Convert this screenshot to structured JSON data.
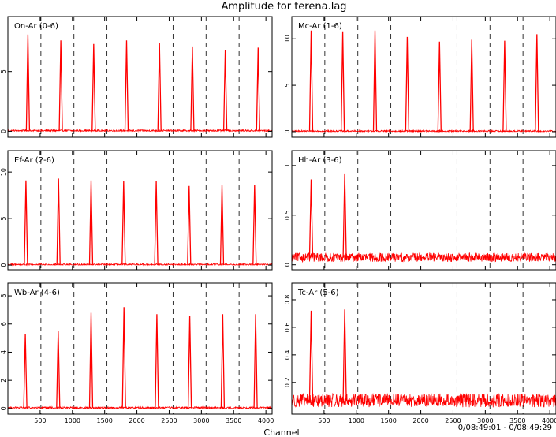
{
  "figure": {
    "title": "Amplitude for terena.lag",
    "xlabel": "Channel",
    "time_range": "0/08:49:01 - 0/08:49:29"
  },
  "chart_data": [
    {
      "type": "line",
      "title": "On-Ar (0-6)",
      "xlim": [
        0,
        4096
      ],
      "ylim": [
        -0.5,
        9.6
      ],
      "yticks": [
        0,
        5
      ],
      "xticks": [
        500,
        1000,
        1500,
        2000,
        2500,
        3000,
        3500,
        4000
      ],
      "dashed_x": [
        512,
        1024,
        1536,
        2048,
        2560,
        3072,
        3584
      ],
      "baseline": 0.05,
      "noise": 0.08,
      "peaks": [
        {
          "x": 310,
          "y": 8.1
        },
        {
          "x": 820,
          "y": 7.6
        },
        {
          "x": 1330,
          "y": 7.3
        },
        {
          "x": 1840,
          "y": 7.6
        },
        {
          "x": 2350,
          "y": 7.4
        },
        {
          "x": 2860,
          "y": 7.1
        },
        {
          "x": 3370,
          "y": 6.8
        },
        {
          "x": 3880,
          "y": 7.0
        }
      ],
      "series": [
        {
          "color": "#ff0000"
        }
      ]
    },
    {
      "type": "line",
      "title": "Mc-Ar (1-6)",
      "xlim": [
        0,
        4096
      ],
      "ylim": [
        -0.6,
        12.4
      ],
      "yticks": [
        0,
        5,
        10
      ],
      "xticks": [
        500,
        1000,
        1500,
        2000,
        2500,
        3000,
        3500,
        4000
      ],
      "dashed_x": [
        512,
        1024,
        1536,
        2048,
        2560,
        3072,
        3584
      ],
      "baseline": 0.05,
      "noise": 0.1,
      "peaks": [
        {
          "x": 300,
          "y": 10.9
        },
        {
          "x": 790,
          "y": 10.8
        },
        {
          "x": 1290,
          "y": 10.9
        },
        {
          "x": 1790,
          "y": 10.2
        },
        {
          "x": 2290,
          "y": 9.7
        },
        {
          "x": 2790,
          "y": 9.9
        },
        {
          "x": 3300,
          "y": 9.8
        },
        {
          "x": 3800,
          "y": 10.5
        }
      ],
      "series": [
        {
          "color": "#ff0000"
        }
      ]
    },
    {
      "type": "line",
      "title": "Ef-Ar (2-6)",
      "xlim": [
        0,
        4096
      ],
      "ylim": [
        -0.5,
        12.3
      ],
      "yticks": [
        0,
        5,
        10
      ],
      "xticks": [
        500,
        1000,
        1500,
        2000,
        2500,
        3000,
        3500,
        4000
      ],
      "dashed_x": [
        512,
        1024,
        1536,
        2048,
        2560,
        3072,
        3584
      ],
      "baseline": 0.05,
      "noise": 0.1,
      "peaks": [
        {
          "x": 280,
          "y": 9.1
        },
        {
          "x": 785,
          "y": 9.3
        },
        {
          "x": 1290,
          "y": 9.1
        },
        {
          "x": 1795,
          "y": 9.0
        },
        {
          "x": 2300,
          "y": 9.0
        },
        {
          "x": 2810,
          "y": 8.5
        },
        {
          "x": 3320,
          "y": 8.6
        },
        {
          "x": 3825,
          "y": 8.6
        }
      ],
      "series": [
        {
          "color": "#ff0000"
        }
      ]
    },
    {
      "type": "line",
      "title": "Hh-Ar (3-6)",
      "xlim": [
        0,
        4096
      ],
      "ylim": [
        -0.05,
        1.15
      ],
      "yticks": [
        0,
        0.5,
        1
      ],
      "xticks": [
        500,
        1000,
        1500,
        2000,
        2500,
        3000,
        3500,
        4000
      ],
      "dashed_x": [
        512,
        1024,
        1536,
        2048,
        2560,
        3072,
        3584
      ],
      "baseline": 0.075,
      "noise": 0.045,
      "peaks": [
        {
          "x": 300,
          "y": 0.86
        },
        {
          "x": 820,
          "y": 0.92
        }
      ],
      "series": [
        {
          "color": "#ff0000"
        }
      ]
    },
    {
      "type": "line",
      "title": "Wb-Ar (4-6)",
      "xlim": [
        0,
        4096
      ],
      "ylim": [
        -0.4,
        8.9
      ],
      "yticks": [
        0,
        2,
        4,
        6,
        8
      ],
      "xticks": [
        500,
        1000,
        1500,
        2000,
        2500,
        3000,
        3500,
        4000
      ],
      "dashed_x": [
        512,
        1024,
        1536,
        2048,
        2560,
        3072,
        3584
      ],
      "baseline": 0.05,
      "noise": 0.07,
      "peaks": [
        {
          "x": 270,
          "y": 5.3
        },
        {
          "x": 780,
          "y": 5.5
        },
        {
          "x": 1290,
          "y": 6.8
        },
        {
          "x": 1800,
          "y": 7.2
        },
        {
          "x": 2310,
          "y": 6.7
        },
        {
          "x": 2820,
          "y": 6.6
        },
        {
          "x": 3330,
          "y": 6.7
        },
        {
          "x": 3840,
          "y": 6.7
        }
      ],
      "series": [
        {
          "color": "#ff0000"
        }
      ]
    },
    {
      "type": "line",
      "title": "Tc-Ar (5-6)",
      "xlim": [
        0,
        4096
      ],
      "ylim": [
        -0.03,
        0.92
      ],
      "yticks": [
        0.2,
        0.4,
        0.6,
        0.8
      ],
      "xticks": [
        500,
        1000,
        1500,
        2000,
        2500,
        3000,
        3500,
        4000
      ],
      "dashed_x": [
        512,
        1024,
        1536,
        2048,
        2560,
        3072,
        3584
      ],
      "baseline": 0.07,
      "noise": 0.05,
      "peaks": [
        {
          "x": 300,
          "y": 0.72
        },
        {
          "x": 820,
          "y": 0.73
        }
      ],
      "series": [
        {
          "color": "#ff0000"
        }
      ]
    }
  ]
}
